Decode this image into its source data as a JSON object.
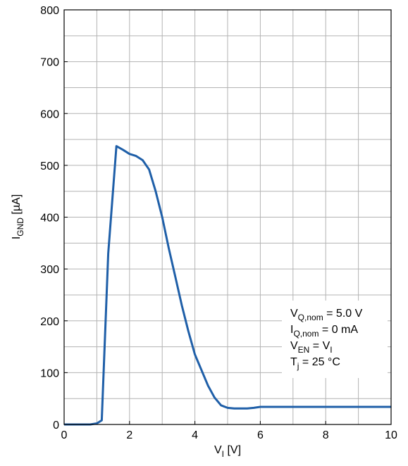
{
  "chart_data": {
    "type": "line",
    "xlabel": {
      "main": "V",
      "sub": "I",
      "unit": " [V]"
    },
    "ylabel": {
      "main": "I",
      "sub": "GND",
      "unit": " [µA]"
    },
    "xlim": [
      0,
      10
    ],
    "ylim": [
      0,
      800
    ],
    "x_ticks": [
      0,
      2,
      4,
      6,
      8,
      10
    ],
    "y_ticks": [
      0,
      100,
      200,
      300,
      400,
      500,
      600,
      700,
      800
    ],
    "x_tick_labels": [
      "0",
      "2",
      "4",
      "6",
      "8",
      "10"
    ],
    "y_tick_labels": [
      "0",
      "100",
      "200",
      "300",
      "400",
      "500",
      "600",
      "700",
      "800"
    ],
    "grid": true,
    "grid_x_minor": [
      1,
      3,
      5,
      7,
      9
    ],
    "grid_y_minor": [
      50,
      150,
      250,
      350,
      450,
      550,
      650,
      750
    ],
    "series": [
      {
        "color": "#1f5fa8",
        "x": [
          0,
          0.8,
          1.0,
          1.15,
          1.35,
          1.6,
          1.8,
          2.0,
          2.2,
          2.4,
          2.6,
          2.8,
          3.0,
          3.2,
          3.4,
          3.6,
          3.8,
          4.0,
          4.2,
          4.4,
          4.6,
          4.8,
          5.0,
          5.2,
          5.6,
          5.8,
          6.0,
          7.0,
          8.0,
          9.0,
          10.0
        ],
        "y": [
          0,
          0,
          2,
          8,
          330,
          537,
          530,
          522,
          518,
          510,
          492,
          450,
          400,
          340,
          285,
          230,
          180,
          135,
          105,
          75,
          52,
          37,
          32,
          31,
          31,
          32,
          34,
          34,
          34,
          34,
          34
        ]
      }
    ],
    "annotations": [
      {
        "main": "V",
        "sub": "Q,nom",
        "rest": " = 5.0 V"
      },
      {
        "main": "I",
        "sub": "Q,nom",
        "rest": " = 0 mA"
      },
      {
        "main": "V",
        "sub": "EN",
        "rest": " = V",
        "sub2": "I"
      },
      {
        "main": "T",
        "sub": "j",
        "rest": " = 25 °C"
      }
    ]
  }
}
